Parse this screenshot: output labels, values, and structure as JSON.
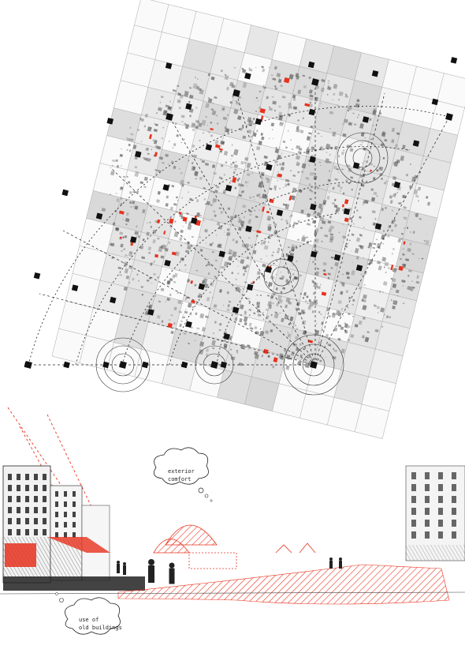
{
  "annotations": {
    "exterior_comfort_line1": "exterior",
    "exterior_comfort_line2": "comfort",
    "reuse_line1": "use of",
    "reuse_line2": "old buildings"
  },
  "colors": {
    "accent": "#e8321e",
    "ink": "#111111",
    "grid": "#9a9a9a",
    "paper": "#ffffff"
  },
  "icons": [
    "grid-node-marker",
    "thought-bubble",
    "pedestrian-figure"
  ]
}
